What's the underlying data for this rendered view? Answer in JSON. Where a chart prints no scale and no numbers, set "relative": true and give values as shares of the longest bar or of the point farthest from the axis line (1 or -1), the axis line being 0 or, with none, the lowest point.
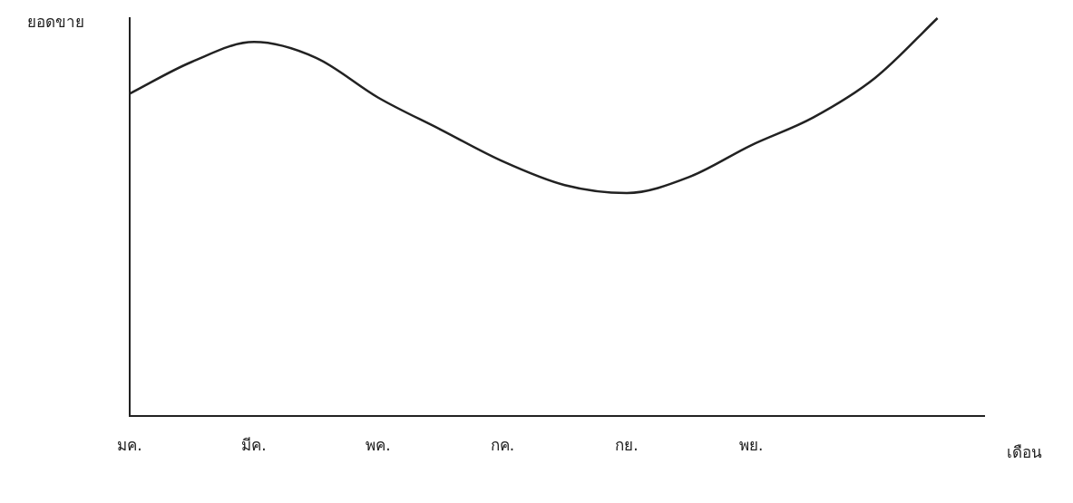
{
  "chart_data": {
    "type": "line",
    "relative": true,
    "ylabel": "ยอดขาย",
    "xlabel": "เดือน",
    "categories": [
      "มค.",
      null,
      "มีค.",
      null,
      "พค.",
      null,
      "กค.",
      null,
      "กย.",
      null,
      "พย.",
      null,
      null,
      null
    ],
    "series": [
      {
        "color": "#222222",
        "values": [
          0.81,
          0.89,
          0.94,
          0.9,
          0.8,
          0.72,
          0.64,
          0.58,
          0.56,
          0.6,
          0.68,
          0.75,
          0.85,
          1.0
        ]
      }
    ],
    "grid": false,
    "legend": false
  }
}
